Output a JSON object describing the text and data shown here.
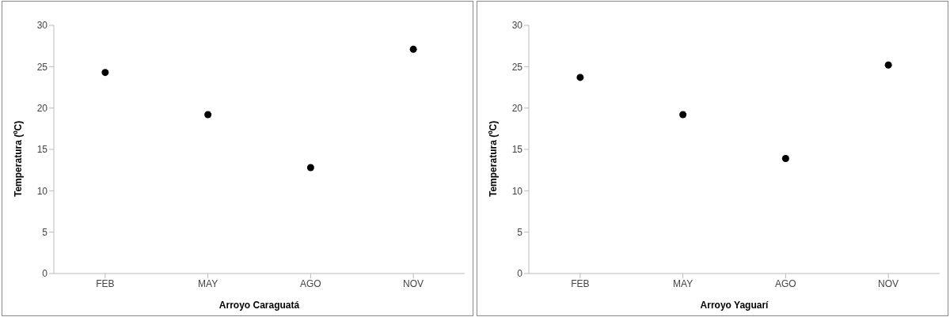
{
  "chart_data": [
    {
      "type": "scatter",
      "xlabel": "Arroyo Caraguatá",
      "ylabel": "Temperatura (ºC)",
      "categories": [
        "FEB",
        "MAY",
        "AGO",
        "NOV"
      ],
      "values": [
        24.3,
        19.2,
        12.8,
        27.1
      ],
      "color": "#000000",
      "marker": "circle",
      "ylim": [
        0,
        30
      ],
      "yticks": [
        0,
        5,
        10,
        15,
        20,
        25,
        30
      ],
      "grid": false,
      "legend": false
    },
    {
      "type": "scatter",
      "xlabel": "Arroyo Yaguarí",
      "ylabel": "Temperatura (ºC)",
      "categories": [
        "FEB",
        "MAY",
        "AGO",
        "NOV"
      ],
      "values": [
        23.7,
        19.2,
        13.9,
        25.2
      ],
      "color": "#000000",
      "marker": "circle",
      "ylim": [
        0,
        30
      ],
      "yticks": [
        0,
        5,
        10,
        15,
        20,
        25,
        30
      ],
      "grid": false,
      "legend": false
    }
  ]
}
